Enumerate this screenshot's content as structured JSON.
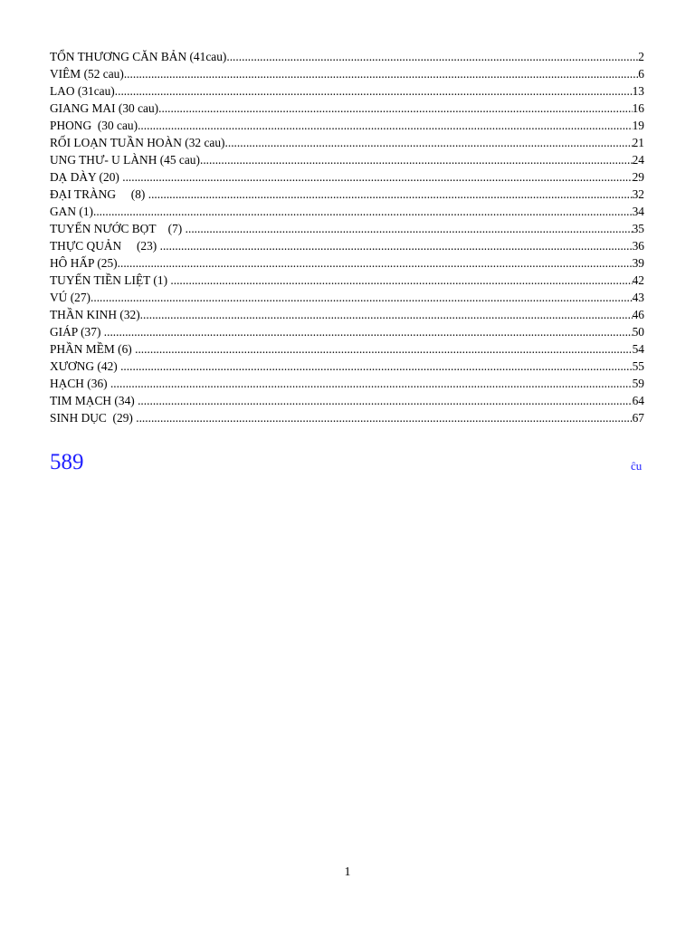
{
  "toc": [
    {
      "title": "TỔN THƯƠNG CĂN BẢN (41cau)",
      "page": "2"
    },
    {
      "title": "VIÊM (52 cau)",
      "page": "6"
    },
    {
      "title": "LAO (31cau)",
      "page": "13"
    },
    {
      "title": "GIANG MAI (30 cau)",
      "page": "16"
    },
    {
      "title": "PHONG  (30 cau)",
      "page": "19"
    },
    {
      "title": "RỐI LOẠN TUẦN HOÀN (32 cau)",
      "page": "21"
    },
    {
      "title": "UNG THƯ- U LÀNH (45 cau)",
      "page": "24"
    },
    {
      "title": "DẠ DÀY (20) ",
      "page": "29"
    },
    {
      "title": "ĐẠI TRÀNG     (8) ",
      "page": "32"
    },
    {
      "title": "GAN (1)",
      "page": "34"
    },
    {
      "title": "TUYẾN NƯỚC BỌT    (7) ",
      "page": "35"
    },
    {
      "title": "THỰC QUẢN     (23) ",
      "page": "36"
    },
    {
      "title": "HÔ HẤP (25)",
      "page": "39"
    },
    {
      "title": "TUYẾN TIỀN LIỆT (1) ",
      "page": "42"
    },
    {
      "title": "VÚ (27)",
      "page": "43"
    },
    {
      "title": "THẦN KINH (32)",
      "page": "46"
    },
    {
      "title": "GIÁP (37) ",
      "page": "50"
    },
    {
      "title": "PHẦN MỀM (6) ",
      "page": "54"
    },
    {
      "title": "XƯƠNG (42) ",
      "page": "55"
    },
    {
      "title": "HẠCH (36) ",
      "page": "59"
    },
    {
      "title": "TIM MẠCH (34) ",
      "page": "64"
    },
    {
      "title": "SINH DỤC  (29) ",
      "page": "67"
    }
  ],
  "total": "589",
  "note": "ĉu",
  "page_number": "1",
  "colors": {
    "accent": "#2020ff"
  }
}
